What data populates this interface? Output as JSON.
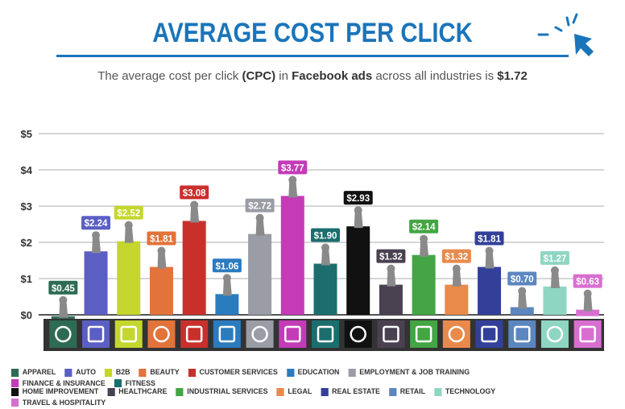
{
  "header": {
    "title": "AVERAGE COST PER CLICK",
    "subtitle_pre": "The average cost per click ",
    "subtitle_b1": "(CPC)",
    "subtitle_mid": " in ",
    "subtitle_b2": "Facebook ads",
    "subtitle_post": " across all industries is ",
    "subtitle_b3": "$1.72"
  },
  "cursor_icon": "mouse-pointer-click-icon",
  "chart_data": {
    "type": "bar",
    "title": "AVERAGE COST PER CLICK",
    "ylim": [
      0,
      5
    ],
    "yticks": [
      "$0",
      "$1",
      "$2",
      "$3",
      "$4",
      "$5"
    ],
    "grid": true,
    "categories": [
      "APPAREL",
      "AUTO",
      "B2B",
      "BEAUTY",
      "CUSTOMER SERVICES",
      "EDUCATION",
      "EMPLOYMENT & JOB TRAINING",
      "FINANCE & INSURANCE",
      "FITNESS",
      "HOME IMPROVEMENT",
      "HEALTHCARE",
      "INDUSTRIAL SERVICES",
      "LEGAL",
      "REAL ESTATE",
      "RETAIL",
      "TECHNOLOGY",
      "TRAVEL & HOSPITALITY"
    ],
    "values": [
      0.45,
      2.24,
      2.52,
      1.81,
      3.08,
      1.06,
      2.72,
      3.77,
      1.9,
      2.93,
      1.32,
      2.14,
      1.32,
      1.81,
      0.7,
      1.27,
      0.63
    ],
    "labels": [
      "$0.45",
      "$2.24",
      "$2.52",
      "$1.81",
      "$3.08",
      "$1.06",
      "$2.72",
      "$3.77",
      "$1.90",
      "$2.93",
      "$1.32",
      "$2.14",
      "$1.32",
      "$1.81",
      "$0.70",
      "$1.27",
      "$0.63"
    ],
    "colors": [
      "#2e6b55",
      "#5b5fc4",
      "#c5d62e",
      "#e2733a",
      "#c9302c",
      "#2b7bbf",
      "#9a9ca6",
      "#c43bb8",
      "#1c6e6e",
      "#111111",
      "#4a4150",
      "#43a543",
      "#e98a4b",
      "#33409a",
      "#5c86bf",
      "#8fd6c2",
      "#d86fd0"
    ],
    "icons": [
      "tshirt-icon",
      "car-icon",
      "handshake-icon",
      "beauty-mirror-icon",
      "headset-icon",
      "book-icon",
      "briefcase-icon",
      "money-bag-icon",
      "flexed-arm-icon",
      "tools-icon",
      "first-aid-icon",
      "factory-icon",
      "gavel-icon",
      "house-icon",
      "tag-icon",
      "laptop-icon",
      "map-pin-icon"
    ],
    "legend_position": "bottom"
  }
}
